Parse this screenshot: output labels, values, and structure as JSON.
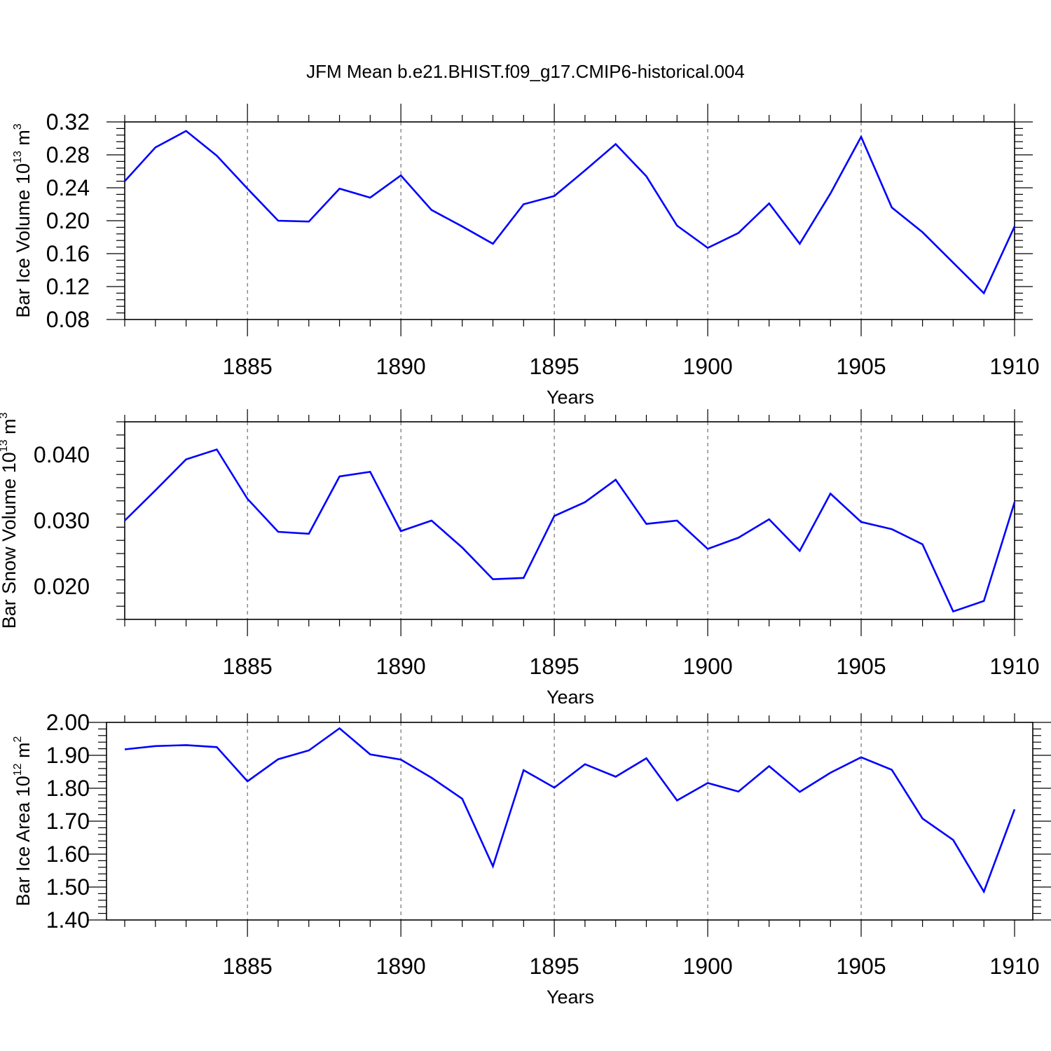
{
  "figure": {
    "title": "JFM Mean b.e21.BHIST.f09_g17.CMIP6-historical.004",
    "series_color": "#0000ff",
    "grid_color": "#555555"
  },
  "chart_data": [
    {
      "type": "line",
      "ylabel": {
        "text": "Bar Ice Volume 10",
        "exp": "13",
        "unit": " m",
        "unit_exp": "3"
      },
      "xlabel": "Years",
      "xlim": [
        1881,
        1910
      ],
      "ylim": [
        0.08,
        0.32
      ],
      "x_ticks": [
        1885,
        1890,
        1895,
        1900,
        1905,
        1910
      ],
      "y_ticks": [
        0.08,
        0.12,
        0.16,
        0.2,
        0.24,
        0.28,
        0.32
      ],
      "y_tick_labels": [
        "0.08",
        "0.12",
        "0.16",
        "0.20",
        "0.24",
        "0.28",
        "0.32"
      ],
      "x_grid": true,
      "x": [
        1881,
        1882,
        1883,
        1884,
        1885,
        1886,
        1887,
        1888,
        1889,
        1890,
        1891,
        1892,
        1893,
        1894,
        1895,
        1896,
        1897,
        1898,
        1899,
        1900,
        1901,
        1902,
        1903,
        1904,
        1905,
        1906,
        1907,
        1908,
        1909,
        1910
      ],
      "values": [
        0.248,
        0.289,
        0.309,
        0.279,
        0.239,
        0.2,
        0.199,
        0.239,
        0.228,
        0.255,
        0.213,
        0.193,
        0.172,
        0.22,
        0.23,
        0.261,
        0.293,
        0.254,
        0.194,
        0.167,
        0.185,
        0.221,
        0.172,
        0.233,
        0.302,
        0.216,
        0.186,
        0.149,
        0.112,
        0.193
      ]
    },
    {
      "type": "line",
      "ylabel": {
        "text": "Bar Snow Volume 10",
        "exp": "13",
        "unit": " m",
        "unit_exp": "3"
      },
      "xlabel": "Years",
      "xlim": [
        1881,
        1910
      ],
      "ylim": [
        0.015,
        0.045
      ],
      "x_ticks": [
        1885,
        1890,
        1895,
        1900,
        1905,
        1910
      ],
      "y_ticks": [
        0.02,
        0.03,
        0.04
      ],
      "y_tick_labels": [
        "0.020",
        "0.030",
        "0.040"
      ],
      "x_grid": true,
      "x": [
        1881,
        1882,
        1883,
        1884,
        1885,
        1886,
        1887,
        1888,
        1889,
        1890,
        1891,
        1892,
        1893,
        1894,
        1895,
        1896,
        1897,
        1898,
        1899,
        1900,
        1901,
        1902,
        1903,
        1904,
        1905,
        1906,
        1907,
        1908,
        1909,
        1910
      ],
      "values": [
        0.03,
        0.0346,
        0.0393,
        0.0408,
        0.0333,
        0.0283,
        0.028,
        0.0367,
        0.0374,
        0.0284,
        0.03,
        0.0259,
        0.0211,
        0.0213,
        0.0307,
        0.0328,
        0.0362,
        0.0295,
        0.03,
        0.0257,
        0.0274,
        0.0302,
        0.0254,
        0.0341,
        0.0298,
        0.0287,
        0.0264,
        0.0162,
        0.0178,
        0.0328
      ]
    },
    {
      "type": "line",
      "ylabel": {
        "text": "Bar Ice Area 10",
        "exp": "12",
        "unit": " m",
        "unit_exp": "2"
      },
      "xlabel": "Years",
      "xlim": [
        1881,
        1910
      ],
      "ylim": [
        1.4,
        2.0
      ],
      "x_ticks": [
        1885,
        1890,
        1895,
        1900,
        1905,
        1910
      ],
      "y_ticks": [
        1.4,
        1.5,
        1.6,
        1.7,
        1.8,
        1.9,
        2.0
      ],
      "y_tick_labels": [
        "1.40",
        "1.50",
        "1.60",
        "1.70",
        "1.80",
        "1.90",
        "2.00"
      ],
      "x_grid": true,
      "x": [
        1881,
        1882,
        1883,
        1884,
        1885,
        1886,
        1887,
        1888,
        1889,
        1890,
        1891,
        1892,
        1893,
        1894,
        1895,
        1896,
        1897,
        1898,
        1899,
        1900,
        1901,
        1902,
        1903,
        1904,
        1905,
        1906,
        1907,
        1908,
        1909,
        1910
      ],
      "values": [
        1.918,
        1.928,
        1.931,
        1.925,
        1.821,
        1.888,
        1.915,
        1.982,
        1.903,
        1.887,
        1.832,
        1.768,
        1.563,
        1.855,
        1.802,
        1.873,
        1.835,
        1.891,
        1.763,
        1.816,
        1.79,
        1.867,
        1.789,
        1.847,
        1.894,
        1.856,
        1.708,
        1.643,
        1.486,
        1.736
      ]
    }
  ]
}
